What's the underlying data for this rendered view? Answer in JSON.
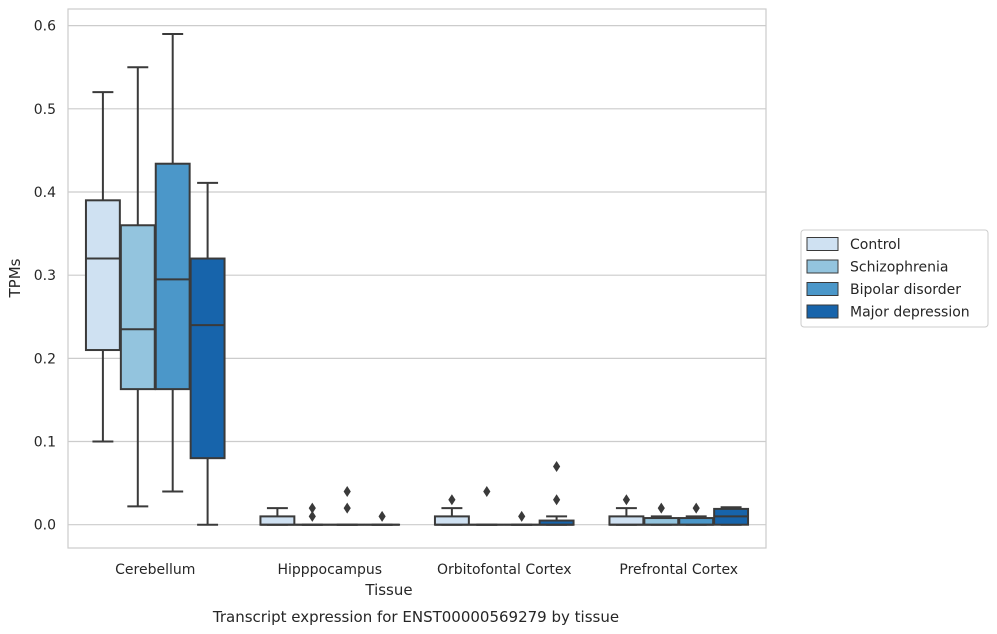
{
  "chart_data": {
    "type": "box",
    "xlabel": "Tissue",
    "ylabel": "TPMs",
    "caption": "Transcript expression for ENST00000569279 by tissue",
    "ylim": [
      -0.028,
      0.62
    ],
    "yticks": [
      "0.0",
      "0.1",
      "0.2",
      "0.3",
      "0.4",
      "0.5",
      "0.6"
    ],
    "grid": true,
    "legend_position": "right",
    "categories": [
      "Cerebellum",
      "Hipppocampus",
      "Orbitofontal Cortex",
      "Prefrontal Cortex"
    ],
    "series": [
      {
        "name": "Control",
        "color": "#cfe1f2",
        "boxes": [
          {
            "whislo": 0.1,
            "q1": 0.21,
            "med": 0.32,
            "q3": 0.39,
            "whishi": 0.52,
            "fliers": []
          },
          {
            "whislo": 0.0,
            "q1": 0.0,
            "med": 0.0,
            "q3": 0.01,
            "whishi": 0.02,
            "fliers": []
          },
          {
            "whislo": 0.0,
            "q1": 0.0,
            "med": 0.0,
            "q3": 0.01,
            "whishi": 0.02,
            "fliers": [
              0.03
            ]
          },
          {
            "whislo": 0.0,
            "q1": 0.0,
            "med": 0.0,
            "q3": 0.01,
            "whishi": 0.02,
            "fliers": [
              0.03
            ]
          }
        ]
      },
      {
        "name": "Schizophrenia",
        "color": "#93c4de",
        "boxes": [
          {
            "whislo": 0.022,
            "q1": 0.163,
            "med": 0.235,
            "q3": 0.36,
            "whishi": 0.55,
            "fliers": []
          },
          {
            "whislo": 0.0,
            "q1": 0.0,
            "med": 0.0,
            "q3": 0.0,
            "whishi": 0.0,
            "fliers": [
              0.01,
              0.02
            ]
          },
          {
            "whislo": 0.0,
            "q1": 0.0,
            "med": 0.0,
            "q3": 0.0,
            "whishi": 0.0,
            "fliers": [
              0.04
            ]
          },
          {
            "whislo": 0.0,
            "q1": 0.0,
            "med": 0.0,
            "q3": 0.008,
            "whishi": 0.01,
            "fliers": [
              0.02
            ]
          }
        ]
      },
      {
        "name": "Bipolar disorder",
        "color": "#4b97c9",
        "boxes": [
          {
            "whislo": 0.04,
            "q1": 0.163,
            "med": 0.295,
            "q3": 0.434,
            "whishi": 0.59,
            "fliers": []
          },
          {
            "whislo": 0.0,
            "q1": 0.0,
            "med": 0.0,
            "q3": 0.0,
            "whishi": 0.0,
            "fliers": [
              0.02,
              0.04
            ]
          },
          {
            "whislo": 0.0,
            "q1": 0.0,
            "med": 0.0,
            "q3": 0.0,
            "whishi": 0.0,
            "fliers": [
              0.01
            ]
          },
          {
            "whislo": 0.0,
            "q1": 0.0,
            "med": 0.0,
            "q3": 0.008,
            "whishi": 0.01,
            "fliers": [
              0.02
            ]
          }
        ]
      },
      {
        "name": "Major depression",
        "color": "#1764ab",
        "boxes": [
          {
            "whislo": 0.0,
            "q1": 0.08,
            "med": 0.24,
            "q3": 0.32,
            "whishi": 0.411,
            "fliers": []
          },
          {
            "whislo": 0.0,
            "q1": 0.0,
            "med": 0.0,
            "q3": 0.0,
            "whishi": 0.0,
            "fliers": [
              0.01
            ]
          },
          {
            "whislo": 0.0,
            "q1": 0.0,
            "med": 0.0,
            "q3": 0.005,
            "whishi": 0.01,
            "fliers": [
              0.03,
              0.07
            ]
          },
          {
            "whislo": 0.0,
            "q1": 0.0,
            "med": 0.01,
            "q3": 0.019,
            "whishi": 0.021,
            "fliers": []
          }
        ]
      }
    ]
  }
}
